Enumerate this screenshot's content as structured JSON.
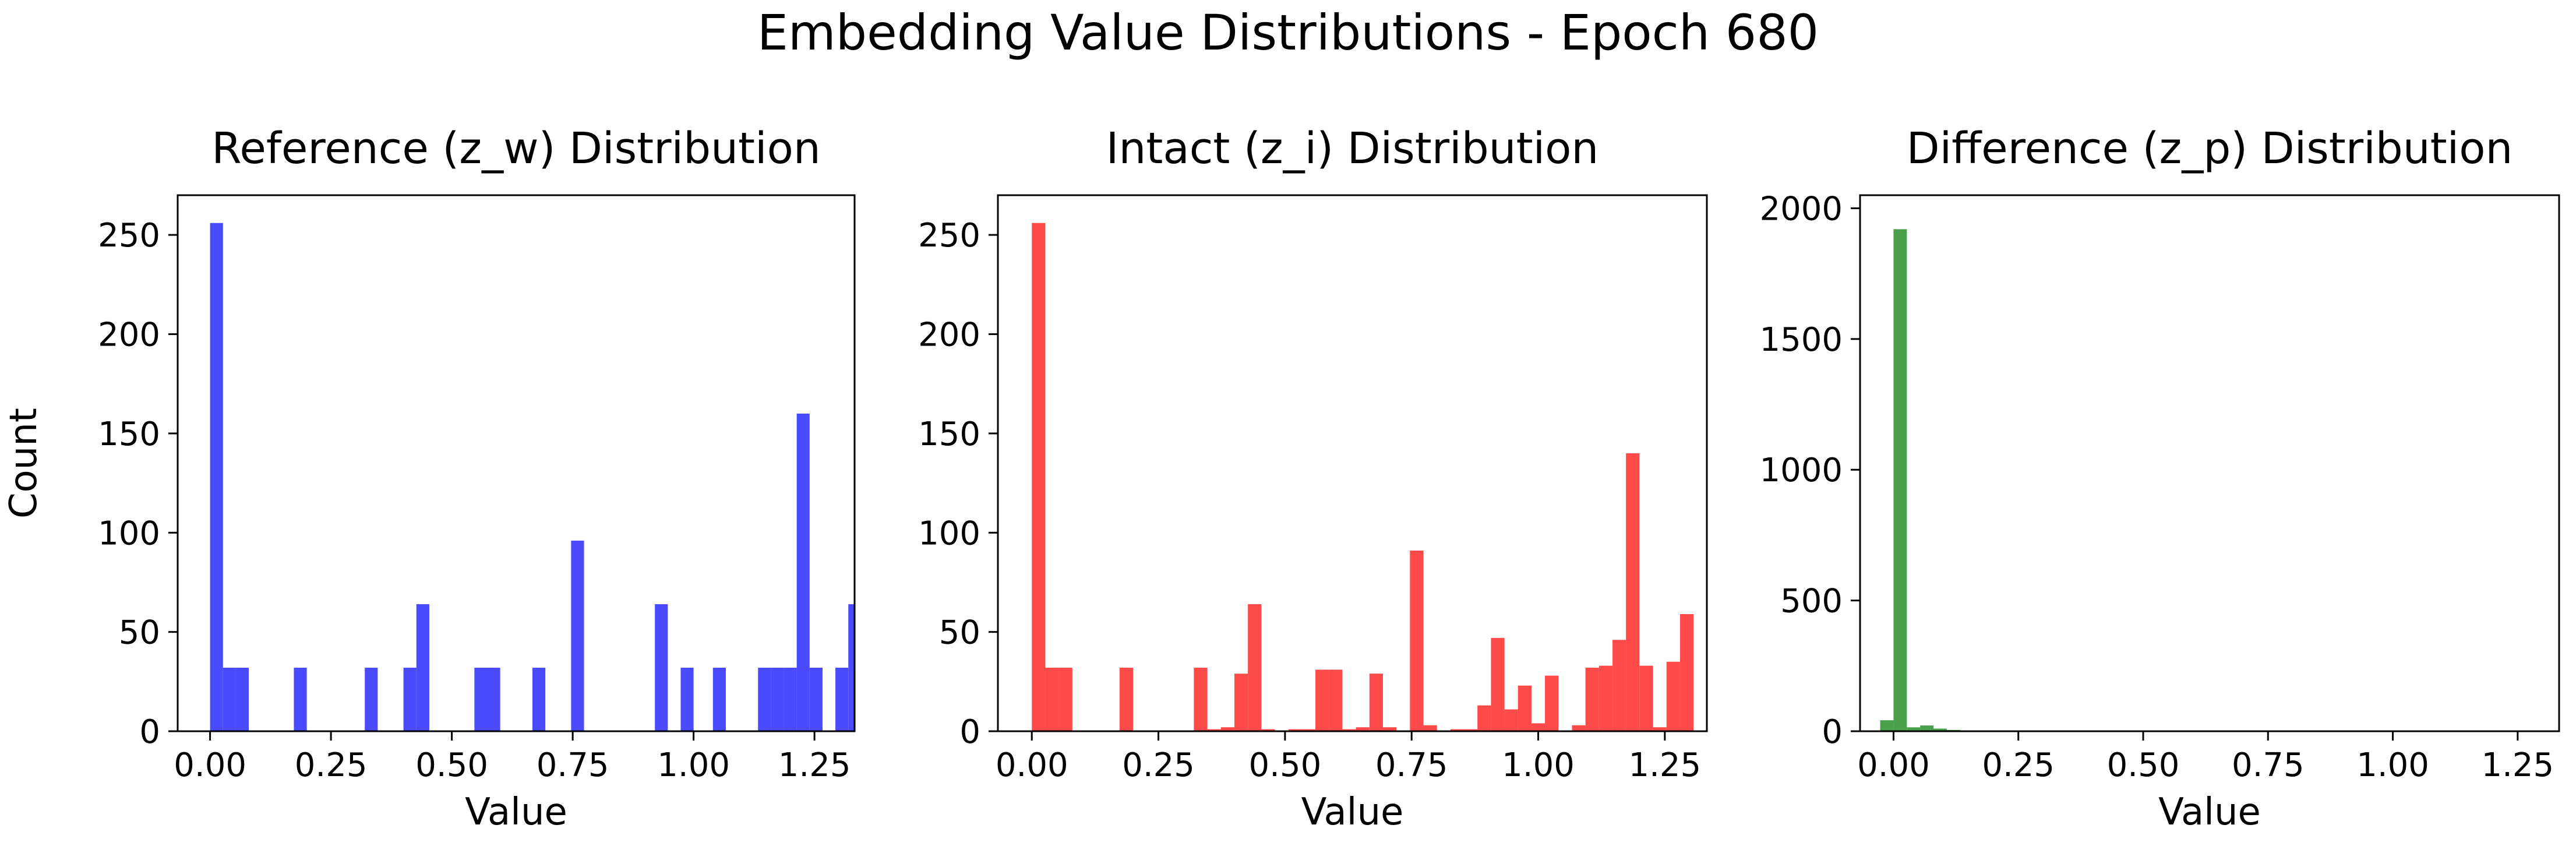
{
  "figure": {
    "title": "Embedding Value Distributions - Epoch 680"
  },
  "chart_data": [
    {
      "type": "bar",
      "subtype": "histogram",
      "title": "Reference (z_w) Distribution",
      "xlabel": "Value",
      "ylabel": "Count",
      "color": "#4a4aff",
      "xlim": [
        -0.067,
        1.333
      ],
      "ylim": [
        0,
        270
      ],
      "xticks": [
        0.0,
        0.25,
        0.5,
        0.75,
        1.0,
        1.25
      ],
      "xtick_labels": [
        "0.00",
        "0.25",
        "0.50",
        "0.75",
        "1.00",
        "1.25"
      ],
      "yticks": [
        0,
        50,
        100,
        150,
        200,
        250
      ],
      "ytick_labels": [
        "0",
        "50",
        "100",
        "150",
        "200",
        "250"
      ],
      "bin_width": 0.0267,
      "bins": [
        {
          "x": 0.0,
          "count": 256
        },
        {
          "x": 0.0267,
          "count": 32
        },
        {
          "x": 0.0533,
          "count": 32
        },
        {
          "x": 0.1733,
          "count": 32
        },
        {
          "x": 0.32,
          "count": 32
        },
        {
          "x": 0.4,
          "count": 32
        },
        {
          "x": 0.4267,
          "count": 64
        },
        {
          "x": 0.5467,
          "count": 32
        },
        {
          "x": 0.5733,
          "count": 32
        },
        {
          "x": 0.6667,
          "count": 32
        },
        {
          "x": 0.7467,
          "count": 96
        },
        {
          "x": 0.92,
          "count": 64
        },
        {
          "x": 0.9733,
          "count": 32
        },
        {
          "x": 1.04,
          "count": 32
        },
        {
          "x": 1.1333,
          "count": 32
        },
        {
          "x": 1.16,
          "count": 32
        },
        {
          "x": 1.1867,
          "count": 32
        },
        {
          "x": 1.2133,
          "count": 160
        },
        {
          "x": 1.24,
          "count": 32
        },
        {
          "x": 1.2933,
          "count": 32
        },
        {
          "x": 1.32,
          "count": 64
        }
      ]
    },
    {
      "type": "bar",
      "subtype": "histogram",
      "title": "Intact (z_i) Distribution",
      "xlabel": "Value",
      "ylabel": "",
      "color": "#ff4a4a",
      "xlim": [
        -0.067,
        1.333
      ],
      "ylim": [
        0,
        270
      ],
      "xticks": [
        0.0,
        0.25,
        0.5,
        0.75,
        1.0,
        1.25
      ],
      "xtick_labels": [
        "0.00",
        "0.25",
        "0.50",
        "0.75",
        "1.00",
        "1.25"
      ],
      "yticks": [
        0,
        50,
        100,
        150,
        200,
        250
      ],
      "ytick_labels": [
        "0",
        "50",
        "100",
        "150",
        "200",
        "250"
      ],
      "bin_width": 0.0267,
      "bins": [
        {
          "x": 0.0,
          "count": 256
        },
        {
          "x": 0.0267,
          "count": 32
        },
        {
          "x": 0.0533,
          "count": 32
        },
        {
          "x": 0.1733,
          "count": 32
        },
        {
          "x": 0.32,
          "count": 32
        },
        {
          "x": 0.3467,
          "count": 1
        },
        {
          "x": 0.3733,
          "count": 2
        },
        {
          "x": 0.4,
          "count": 29
        },
        {
          "x": 0.4267,
          "count": 64
        },
        {
          "x": 0.4533,
          "count": 1
        },
        {
          "x": 0.5067,
          "count": 1
        },
        {
          "x": 0.5333,
          "count": 1
        },
        {
          "x": 0.56,
          "count": 31
        },
        {
          "x": 0.5867,
          "count": 31
        },
        {
          "x": 0.6133,
          "count": 1
        },
        {
          "x": 0.64,
          "count": 2
        },
        {
          "x": 0.6667,
          "count": 29
        },
        {
          "x": 0.6933,
          "count": 2
        },
        {
          "x": 0.7467,
          "count": 91
        },
        {
          "x": 0.7733,
          "count": 3
        },
        {
          "x": 0.8267,
          "count": 1
        },
        {
          "x": 0.8533,
          "count": 1
        },
        {
          "x": 0.88,
          "count": 13
        },
        {
          "x": 0.9067,
          "count": 47
        },
        {
          "x": 0.9333,
          "count": 11
        },
        {
          "x": 0.96,
          "count": 23
        },
        {
          "x": 0.9867,
          "count": 4
        },
        {
          "x": 1.0133,
          "count": 28
        },
        {
          "x": 1.0667,
          "count": 3
        },
        {
          "x": 1.0933,
          "count": 32
        },
        {
          "x": 1.12,
          "count": 33
        },
        {
          "x": 1.1467,
          "count": 46
        },
        {
          "x": 1.1733,
          "count": 140
        },
        {
          "x": 1.2,
          "count": 33
        },
        {
          "x": 1.2267,
          "count": 2
        },
        {
          "x": 1.2533,
          "count": 35
        },
        {
          "x": 1.28,
          "count": 59
        }
      ]
    },
    {
      "type": "bar",
      "subtype": "histogram",
      "title": "Difference (z_p) Distribution",
      "xlabel": "Value",
      "ylabel": "",
      "color": "#4aa04a",
      "xlim": [
        -0.067,
        1.333
      ],
      "ylim": [
        0,
        2050
      ],
      "xticks": [
        0.0,
        0.25,
        0.5,
        0.75,
        1.0,
        1.25
      ],
      "xtick_labels": [
        "0.00",
        "0.25",
        "0.50",
        "0.75",
        "1.00",
        "1.25"
      ],
      "yticks": [
        0,
        500,
        1000,
        1500,
        2000
      ],
      "ytick_labels": [
        "0",
        "500",
        "1000",
        "1500",
        "2000"
      ],
      "bin_width": 0.0267,
      "bins": [
        {
          "x": -0.0533,
          "count": 3
        },
        {
          "x": -0.0267,
          "count": 42
        },
        {
          "x": 0.0,
          "count": 1920
        },
        {
          "x": 0.0267,
          "count": 15
        },
        {
          "x": 0.0533,
          "count": 22
        },
        {
          "x": 0.08,
          "count": 10
        },
        {
          "x": 0.1067,
          "count": 5
        },
        {
          "x": 0.1333,
          "count": 2
        }
      ]
    }
  ]
}
